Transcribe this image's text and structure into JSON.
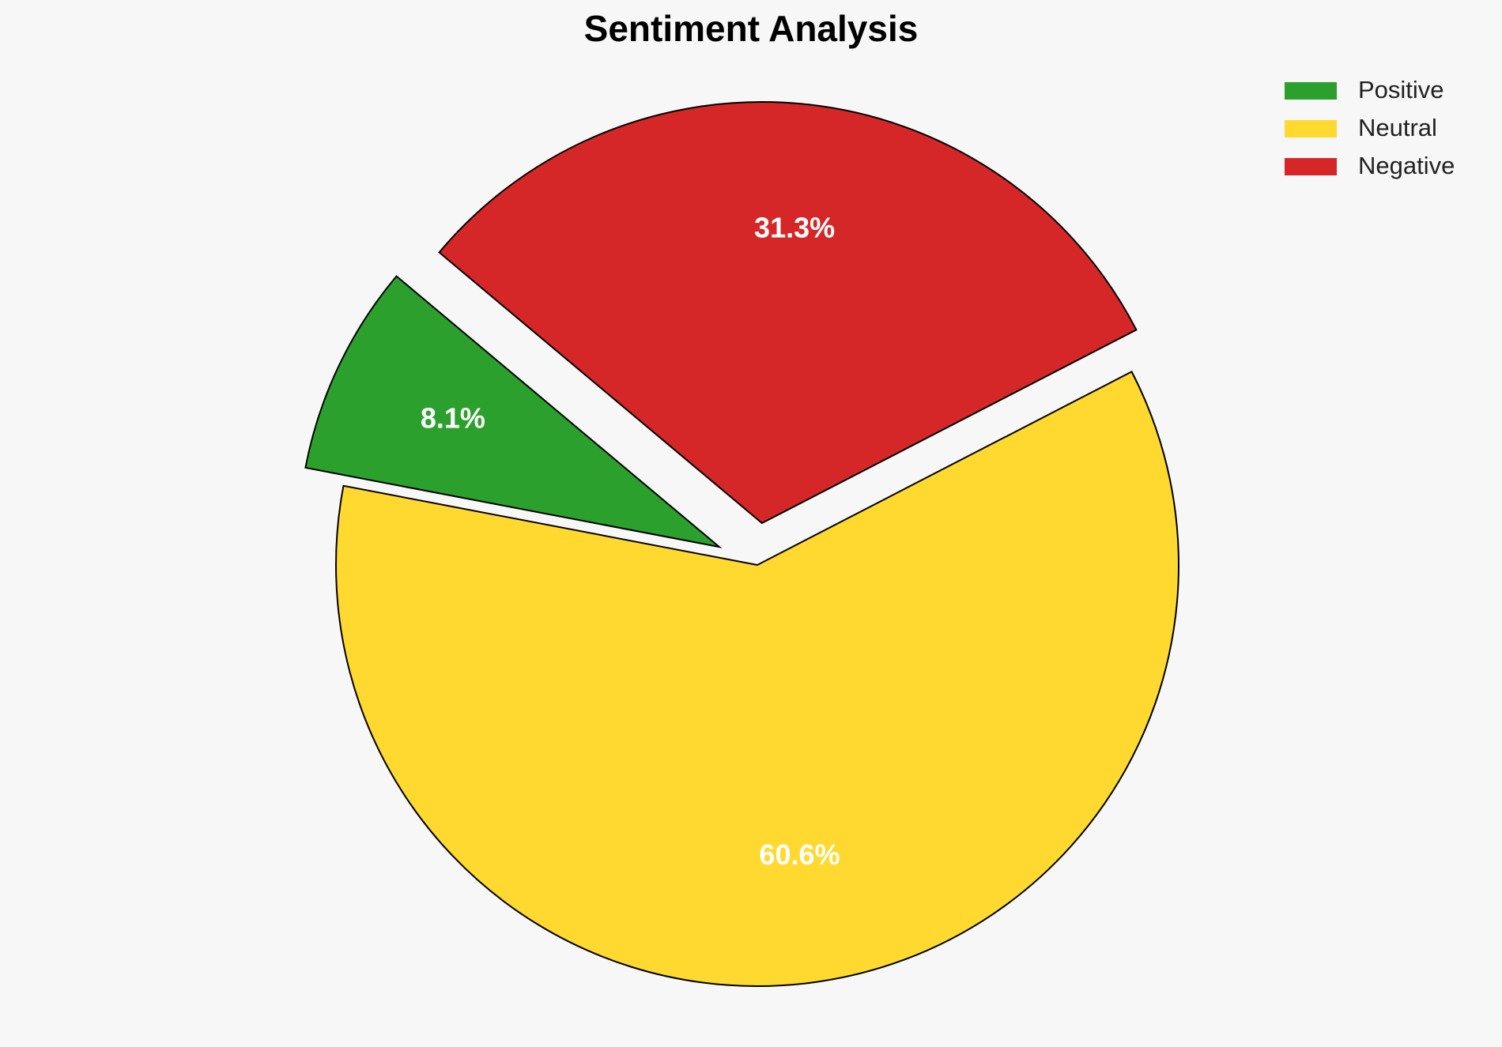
{
  "chart_data": {
    "type": "pie",
    "title": "Sentiment Analysis",
    "categories": [
      "Positive",
      "Neutral",
      "Negative"
    ],
    "values": [
      8.1,
      60.6,
      31.3
    ],
    "value_labels": [
      "8.1%",
      "60.6%",
      "31.3%"
    ],
    "colors": [
      "#2ca02c",
      "#ffd92f",
      "#d62728"
    ],
    "startangle": 140,
    "explode": [
      0.1,
      0,
      0.1
    ],
    "legend": "upper right"
  }
}
